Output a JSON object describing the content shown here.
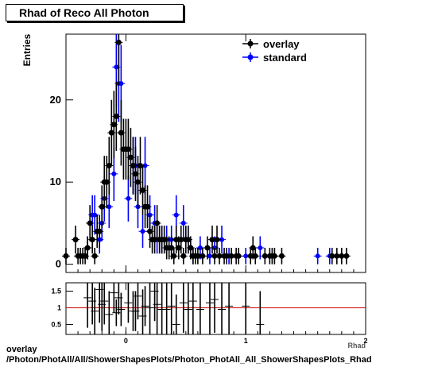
{
  "header": {
    "title": "Rhad of Reco All Photon"
  },
  "footer": {
    "line1": "overlay",
    "line2": "/Photon/PhotAll/All/ShowerShapesPlots/Photon_PhotAll_All_ShowerShapesPlots_Rhad"
  },
  "colors": {
    "overlay": "#000000",
    "standard": "#0000ff",
    "ratio_line": "#cc0000"
  },
  "chart_data": [
    {
      "type": "scatter",
      "title": "Rhad of Reco All Photon",
      "ylabel": "Entries",
      "xlabel": "Rhad",
      "xlim": [
        -0.5,
        2.0
      ],
      "ylim": [
        -1.0,
        28.0
      ],
      "yticks": [
        0,
        10,
        20
      ],
      "legend": {
        "placement": "top-right",
        "entries": [
          "overlay",
          "standard"
        ]
      },
      "series": [
        {
          "name": "overlay",
          "x": [
            -0.5,
            -0.42,
            -0.4,
            -0.38,
            -0.36,
            -0.34,
            -0.32,
            -0.3,
            -0.28,
            -0.26,
            -0.24,
            -0.22,
            -0.2,
            -0.18,
            -0.16,
            -0.14,
            -0.12,
            -0.1,
            -0.08,
            -0.06,
            -0.04,
            -0.02,
            0.0,
            0.02,
            0.04,
            0.06,
            0.08,
            0.1,
            0.12,
            0.14,
            0.16,
            0.18,
            0.2,
            0.22,
            0.24,
            0.26,
            0.28,
            0.3,
            0.32,
            0.34,
            0.36,
            0.38,
            0.4,
            0.42,
            0.44,
            0.46,
            0.48,
            0.5,
            0.52,
            0.54,
            0.56,
            0.58,
            0.6,
            0.64,
            0.68,
            0.72,
            0.74,
            0.76,
            0.78,
            0.82,
            0.84,
            0.88,
            0.92,
            0.94,
            1.04,
            1.06,
            1.08,
            1.16,
            1.2,
            1.22,
            1.24,
            1.3,
            1.72,
            1.76,
            1.8,
            1.84
          ],
          "y": [
            1,
            3,
            1,
            1,
            1,
            1,
            2,
            5,
            3,
            1,
            4,
            4,
            7,
            10,
            10,
            12,
            16,
            17,
            18,
            27,
            16,
            14,
            14,
            14,
            13,
            12,
            11,
            10,
            12,
            9,
            7,
            7,
            4,
            3,
            3,
            5,
            3,
            3,
            3,
            2,
            2,
            2,
            1,
            3,
            2,
            3,
            1,
            3,
            3,
            2,
            1,
            1,
            1,
            1,
            2,
            3,
            1,
            3,
            1,
            1,
            1,
            1,
            1,
            1,
            1,
            2,
            1,
            1,
            1,
            1,
            1,
            1,
            1,
            1,
            1,
            1
          ],
          "yerr": [
            1,
            1.7,
            1,
            1,
            1,
            1,
            1.4,
            2.2,
            1.7,
            1,
            2,
            2,
            2.6,
            3.2,
            3.2,
            3.5,
            4,
            4.1,
            4.2,
            5.2,
            4,
            3.7,
            3.7,
            3.7,
            3.6,
            3.5,
            3.3,
            3.2,
            3.5,
            3,
            2.6,
            2.6,
            2,
            1.7,
            1.7,
            2.2,
            1.7,
            1.7,
            1.7,
            1.4,
            1.4,
            1.4,
            1,
            1.7,
            1.4,
            1.7,
            1,
            1.7,
            1.7,
            1.4,
            1,
            1,
            1,
            1,
            1.4,
            1.7,
            1,
            1.7,
            1,
            1,
            1,
            1,
            1,
            1,
            1,
            1.4,
            1,
            1,
            1,
            1,
            1,
            1,
            1,
            1,
            1,
            1
          ]
        },
        {
          "name": "standard",
          "x": [
            -0.32,
            -0.28,
            -0.26,
            -0.22,
            -0.2,
            -0.18,
            -0.14,
            -0.1,
            -0.08,
            -0.06,
            -0.04,
            0.02,
            0.06,
            0.08,
            0.1,
            0.14,
            0.16,
            0.2,
            0.24,
            0.26,
            0.3,
            0.34,
            0.38,
            0.42,
            0.48,
            0.52,
            0.56,
            0.62,
            0.7,
            0.74,
            0.8,
            0.86,
            1.0,
            1.12,
            1.6,
            1.7
          ],
          "y": [
            2,
            6,
            6,
            3,
            5,
            8,
            7,
            11,
            24,
            22,
            22,
            8,
            12,
            12,
            7,
            4,
            12,
            6,
            5,
            3,
            3,
            3,
            3,
            6,
            5,
            3,
            1,
            2,
            1,
            2,
            3,
            1,
            1,
            2,
            1,
            1
          ],
          "yerr": [
            1.4,
            2.4,
            2.4,
            1.7,
            2.2,
            2.8,
            2.6,
            3.3,
            4.9,
            4.7,
            4.7,
            2.8,
            3.5,
            3.5,
            2.6,
            2,
            3.5,
            2.4,
            2.2,
            1.7,
            1.7,
            1.7,
            1.7,
            2.4,
            2.2,
            1.7,
            1,
            1.4,
            1,
            1.4,
            1.7,
            1,
            1,
            1.4,
            1,
            1
          ]
        }
      ]
    },
    {
      "type": "scatter",
      "xlim": [
        -0.5,
        2.0
      ],
      "ylim": [
        0.2,
        1.75
      ],
      "yticks": [
        0.5,
        1,
        1.5
      ],
      "xticks": [
        0,
        1,
        2
      ],
      "reference_line": 1,
      "series": [
        {
          "name": "",
          "x": [
            -0.32,
            -0.28,
            -0.26,
            -0.22,
            -0.2,
            -0.18,
            -0.14,
            -0.1,
            -0.08,
            -0.06,
            -0.04,
            0.02,
            0.06,
            0.08,
            0.1,
            0.14,
            0.16,
            0.2,
            0.24,
            0.26,
            0.3,
            0.34,
            0.38,
            0.42,
            0.48,
            0.52,
            0.56,
            0.62,
            0.7,
            0.74,
            0.8,
            0.86,
            1.0,
            1.12
          ],
          "y": [
            1.3,
            1.2,
            0.9,
            1.55,
            1.1,
            1.2,
            0.8,
            1.45,
            0.85,
            1.3,
            0.95,
            1.15,
            0.9,
            0.9,
            1.35,
            0.75,
            1.05,
            1.0,
            1.5,
            1.1,
            0.95,
            0.95,
            1.05,
            0.5,
            1.15,
            0.95,
            1.2,
            0.95,
            1.15,
            1.25,
            0.95,
            1.05,
            1.05,
            0.5
          ],
          "yerr": [
            0.9,
            0.7,
            0.7,
            1.0,
            0.8,
            0.7,
            0.7,
            0.6,
            0.4,
            0.5,
            0.5,
            0.6,
            0.6,
            0.6,
            0.7,
            0.8,
            0.6,
            0.9,
            0.9,
            0.9,
            0.9,
            0.9,
            0.9,
            0.9,
            0.9,
            0.9,
            1.1,
            1.0,
            1.1,
            1.0,
            1.0,
            1.1,
            1.1,
            1.0
          ]
        }
      ]
    }
  ]
}
